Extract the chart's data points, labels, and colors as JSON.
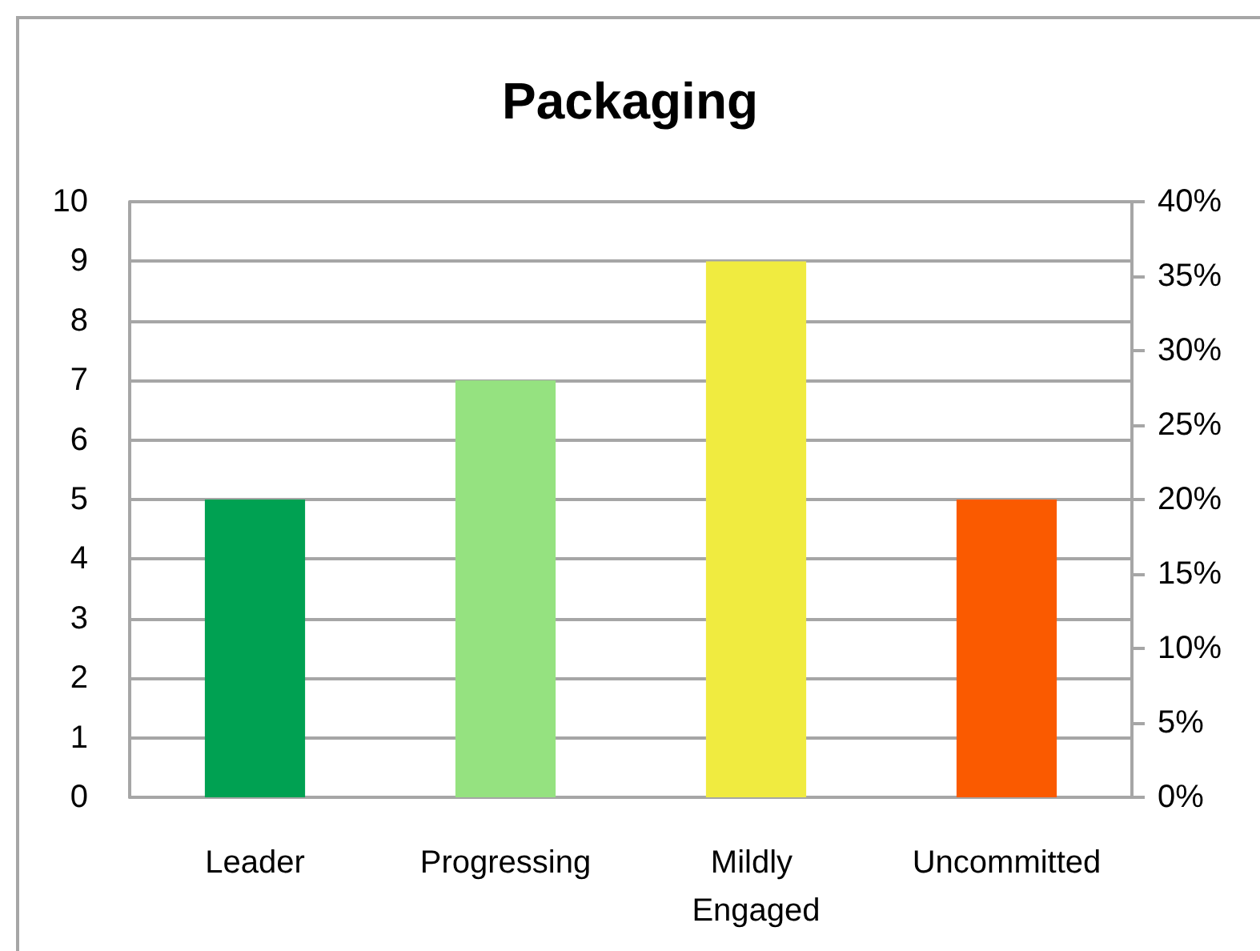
{
  "chart_data": {
    "type": "bar",
    "title": "Packaging",
    "categories": [
      "Leader",
      "Progressing",
      "Mildly Engaged",
      "Uncommitted"
    ],
    "values": [
      5,
      7,
      9,
      5
    ],
    "colors": [
      "#00a152",
      "#95e280",
      "#f0eb40",
      "#fa5a00"
    ],
    "ylim": [
      0,
      10
    ],
    "yticks": [
      0,
      1,
      2,
      3,
      4,
      5,
      6,
      7,
      8,
      9,
      10
    ],
    "y2lim": [
      0,
      40
    ],
    "y2ticks": [
      {
        "value": 0,
        "label": "0%"
      },
      {
        "value": 5,
        "label": "5%"
      },
      {
        "value": 10,
        "label": "10%"
      },
      {
        "value": 15,
        "label": "15%"
      },
      {
        "value": 20,
        "label": "20%"
      },
      {
        "value": 25,
        "label": "25%"
      },
      {
        "value": 30,
        "label": "30%"
      },
      {
        "value": 35,
        "label": "35%"
      },
      {
        "value": 40,
        "label": "40%"
      }
    ],
    "grid": "y"
  }
}
